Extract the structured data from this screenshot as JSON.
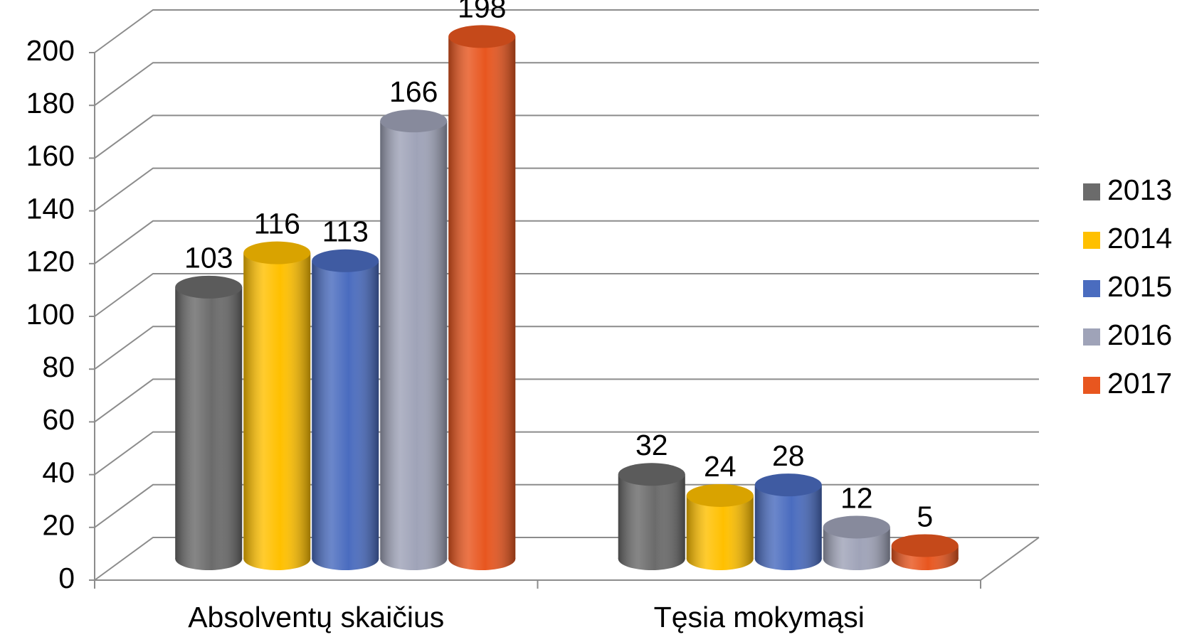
{
  "chart_data": {
    "type": "bar3d",
    "categories": [
      "Absolventų skaičius",
      "Tęsia mokymąsi"
    ],
    "series": [
      {
        "name": "2013",
        "color": "#6b6b6b",
        "values": [
          103,
          32
        ]
      },
      {
        "name": "2014",
        "color": "#ffc000",
        "values": [
          116,
          24
        ]
      },
      {
        "name": "2015",
        "color": "#4a6cbf",
        "values": [
          113,
          28
        ]
      },
      {
        "name": "2016",
        "color": "#9fa3b8",
        "values": [
          166,
          12
        ]
      },
      {
        "name": "2017",
        "color": "#e8561f",
        "values": [
          198,
          5
        ]
      }
    ],
    "ylim": [
      0,
      200
    ],
    "yticks": [
      0,
      20,
      40,
      60,
      80,
      100,
      120,
      140,
      160,
      180,
      200
    ],
    "grid": true,
    "legend": "right"
  }
}
